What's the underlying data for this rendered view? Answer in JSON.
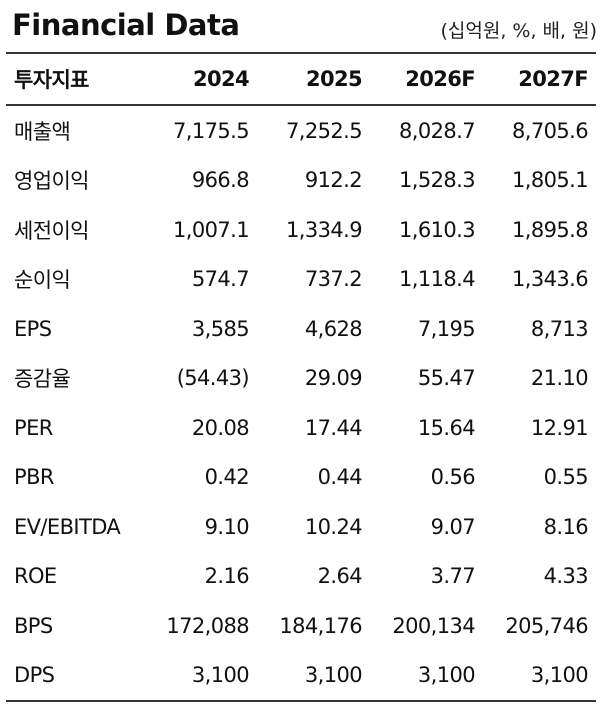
{
  "header": {
    "title": "Financial Data",
    "unit": "(십억원, %, 배, 원)"
  },
  "table": {
    "columns": [
      "투자지표",
      "2024",
      "2025",
      "2026F",
      "2027F"
    ],
    "rows": [
      [
        "매출액",
        "7,175.5",
        "7,252.5",
        "8,028.7",
        "8,705.6"
      ],
      [
        "영업이익",
        "966.8",
        "912.2",
        "1,528.3",
        "1,805.1"
      ],
      [
        "세전이익",
        "1,007.1",
        "1,334.9",
        "1,610.3",
        "1,895.8"
      ],
      [
        "순이익",
        "574.7",
        "737.2",
        "1,118.4",
        "1,343.6"
      ],
      [
        "EPS",
        "3,585",
        "4,628",
        "7,195",
        "8,713"
      ],
      [
        "증감율",
        "(54.43)",
        "29.09",
        "55.47",
        "21.10"
      ],
      [
        "PER",
        "20.08",
        "17.44",
        "15.64",
        "12.91"
      ],
      [
        "PBR",
        "0.42",
        "0.44",
        "0.56",
        "0.55"
      ],
      [
        "EV/EBITDA",
        "9.10",
        "10.24",
        "9.07",
        "8.16"
      ],
      [
        "ROE",
        "2.16",
        "2.64",
        "3.77",
        "4.33"
      ],
      [
        "BPS",
        "172,088",
        "184,176",
        "200,134",
        "205,746"
      ],
      [
        "DPS",
        "3,100",
        "3,100",
        "3,100",
        "3,100"
      ]
    ]
  }
}
